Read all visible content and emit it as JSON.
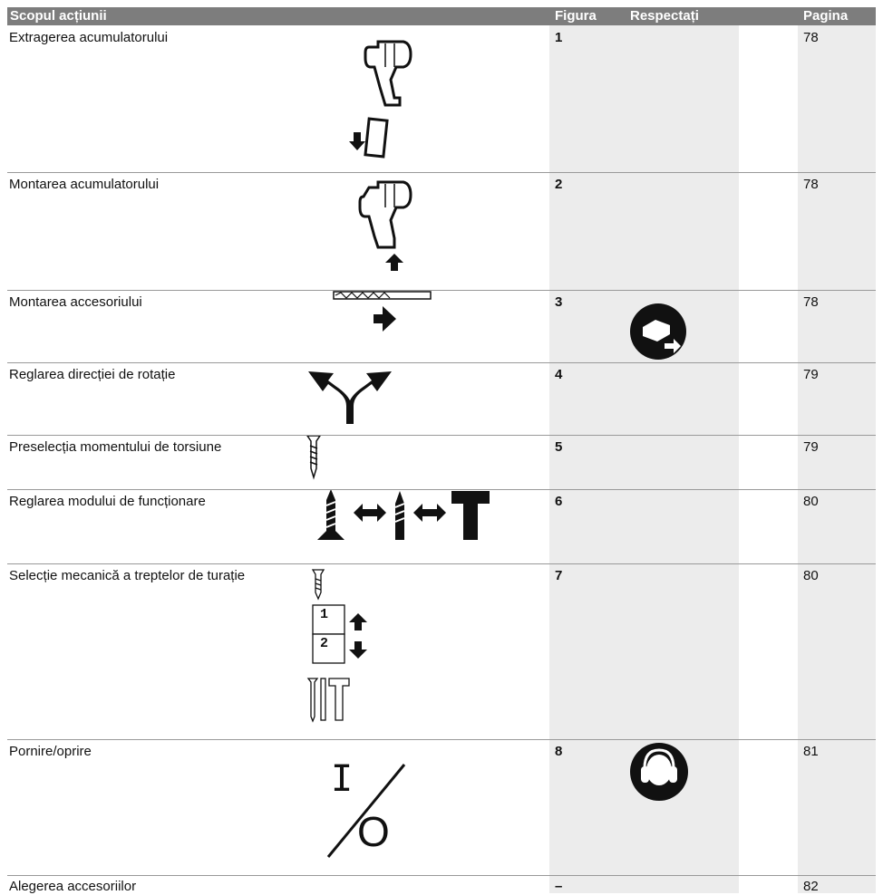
{
  "table": {
    "header": [
      "Scopul acțiunii",
      "Figura",
      "Respectați",
      "Pagina"
    ],
    "rows": [
      [
        "Extragerea acumulatorului",
        1,
        78
      ],
      [
        "Montarea acumulatorului",
        2,
        78
      ],
      [
        "Montarea accesoriului",
        3,
        78
      ],
      [
        "Reglarea direcției de rotație",
        4,
        79
      ],
      [
        "Preselecția momentului de torsiune",
        5,
        79
      ],
      [
        "Reglarea modului de funcționare",
        6,
        80
      ],
      [
        "Selecție mecanică a treptelor de turație",
        7,
        80
      ],
      [
        "Pornire/oprire",
        8,
        81
      ],
      [
        "Alegerea accesoriilor",
        "–",
        82
      ]
    ],
    "gear_labels": [
      "1",
      "2"
    ],
    "switch_labels": [
      "I",
      "O"
    ]
  }
}
